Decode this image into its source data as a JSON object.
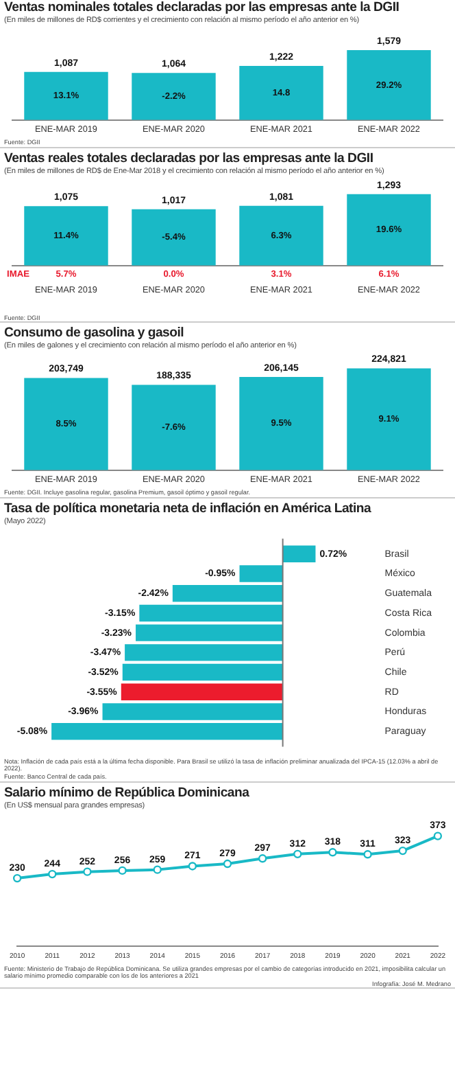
{
  "chart_data": [
    {
      "type": "bar",
      "title": "Ventas nominales totales declaradas por las empresas ante la DGII",
      "subtitle": "(En miles de millones de RD$ corrientes y el crecimiento con relación al mismo período el año anterior en %)",
      "categories": [
        "ENE-MAR 2019",
        "ENE-MAR 2020",
        "ENE-MAR 2021",
        "ENE-MAR 2022"
      ],
      "values": [
        1087,
        1064,
        1222,
        1579
      ],
      "value_labels": [
        "1,087",
        "1,064",
        "1,222",
        "1,579"
      ],
      "color": "#19b9c6",
      "tick_labels": "x",
      "annotations": [
        "13.1%",
        "-2.2%",
        "14.8",
        "29.2%",
        "Fuente: DGII"
      ]
    },
    {
      "type": "bar",
      "title": "Ventas reales totales declaradas por las empresas ante la DGII",
      "subtitle": "(En miles de millones de RD$ de Ene-Mar 2018 y el crecimiento con relación al mismo período el año anterior en %)",
      "categories": [
        "ENE-MAR 2019",
        "ENE-MAR 2020",
        "ENE-MAR 2021",
        "ENE-MAR 2022"
      ],
      "values": [
        1075,
        1017,
        1081,
        1293
      ],
      "value_labels": [
        "1,075",
        "1,017",
        "1,081",
        "1,293"
      ],
      "color": "#19b9c6",
      "tick_labels": "x",
      "annotations": [
        "11.4%",
        "-5.4%",
        "6.3%",
        "19.6%",
        "IMAE",
        "5.7%",
        "0.0%",
        "3.1%",
        "6.1%",
        "Fuente: DGII"
      ]
    },
    {
      "type": "bar",
      "title": "Consumo de gasolina y gasoil",
      "subtitle": "(En miles de galones y el crecimiento con relación al mismo período el año anterior en %)",
      "categories": [
        "ENE-MAR 2019",
        "ENE-MAR 2020",
        "ENE-MAR 2021",
        "ENE-MAR 2022"
      ],
      "values": [
        203749,
        188335,
        206145,
        224821
      ],
      "value_labels": [
        "203,749",
        "188,335",
        "206,145",
        "224,821"
      ],
      "color": "#19b9c6",
      "tick_labels": "x",
      "annotations": [
        "8.5%",
        "-7.6%",
        "9.5%",
        "9.1%",
        "Fuente: DGII. Incluye gasolina regular, gasolina Premium, gasoil óptimo y gasoil regular."
      ]
    },
    {
      "type": "bar",
      "orientation": "horizontal",
      "title": "Tasa de política monetaria neta de inflación en América Latina",
      "subtitle": "(Mayo 2022)",
      "categories": [
        "Brasil",
        "México",
        "Guatemala",
        "Costa Rica",
        "Colombia",
        "Perú",
        "Chile",
        "RD",
        "Honduras",
        "Paraguay"
      ],
      "values": [
        0.72,
        -0.95,
        -2.42,
        -3.15,
        -3.23,
        -3.47,
        -3.52,
        -3.55,
        -3.96,
        -5.08
      ],
      "value_labels": [
        "0.72%",
        "-0.95%",
        "-2.42%",
        "-3.15%",
        "-3.23%",
        "-3.47%",
        "-3.52%",
        "-3.55%",
        "-3.96%",
        "-5.08%"
      ],
      "colors": [
        "#19b9c6",
        "#19b9c6",
        "#19b9c6",
        "#19b9c6",
        "#19b9c6",
        "#19b9c6",
        "#19b9c6",
        "#ec1c2d",
        "#19b9c6",
        "#19b9c6"
      ],
      "tick_labels": "y",
      "annotations": [
        "Nota: Inflación de cada país está a la última fecha disponible. Para Brasil se utilizó la tasa de inflación preliminar anualizada del IPCA-15 (12.03% a abril de 2022).",
        "Fuente: Banco Central de cada país."
      ]
    },
    {
      "type": "line",
      "title": "Salario mínimo de República Dominicana",
      "subtitle": "(En US$ mensual para grandes empresas)",
      "categories": [
        "2010",
        "2011",
        "2012",
        "2013",
        "2014",
        "2015",
        "2016",
        "2017",
        "2018",
        "2019",
        "2020",
        "2021",
        "2022"
      ],
      "values": [
        230,
        244,
        252,
        256,
        259,
        271,
        279,
        297,
        312,
        318,
        311,
        323,
        373
      ],
      "value_labels": [
        "230",
        "244",
        "252",
        "256",
        "259",
        "271",
        "279",
        "297",
        "312",
        "318",
        "311",
        "323",
        "373"
      ],
      "color": "#19b9c6",
      "marker": "circle",
      "tick_labels": "x",
      "annotations": [
        "Fuente: Ministerio de Trabajo de República Dominicana. Se utiliza grandes empresas por el cambio de categorías introducido en 2021, imposibilita calcular un salario mínimo promedio comparable con los de los anteriores a 2021",
        "Infografía: José M. Medrano"
      ]
    }
  ]
}
